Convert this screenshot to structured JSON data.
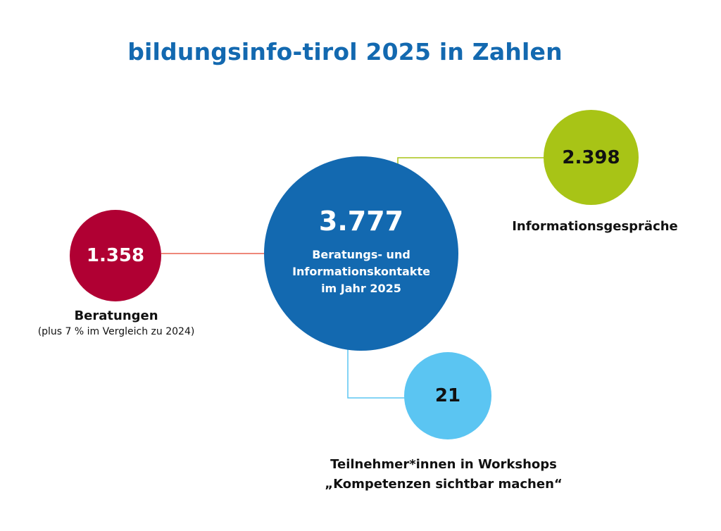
{
  "title": "bildungsinfo-tirol 2025 in Zahlen",
  "center": {
    "value": "3.777",
    "caption_lines": [
      "Beratungs- und",
      "Informationskontakte",
      "im Jahr 2025"
    ],
    "color": "#1369b0"
  },
  "beratungen": {
    "value": "1.358",
    "label": "Beratungen",
    "sublabel": "(plus 7 % im Vergleich zu 2024)",
    "color": "#b00033"
  },
  "informationsgespraeche": {
    "value": "2.398",
    "label": "Informationsgespräche",
    "color": "#a8c416"
  },
  "workshops": {
    "value": "21",
    "label_lines": [
      "Teilnehmer*innen in Workshops",
      "„Kompetenzen sichtbar machen“"
    ],
    "color": "#5bc5f2"
  }
}
